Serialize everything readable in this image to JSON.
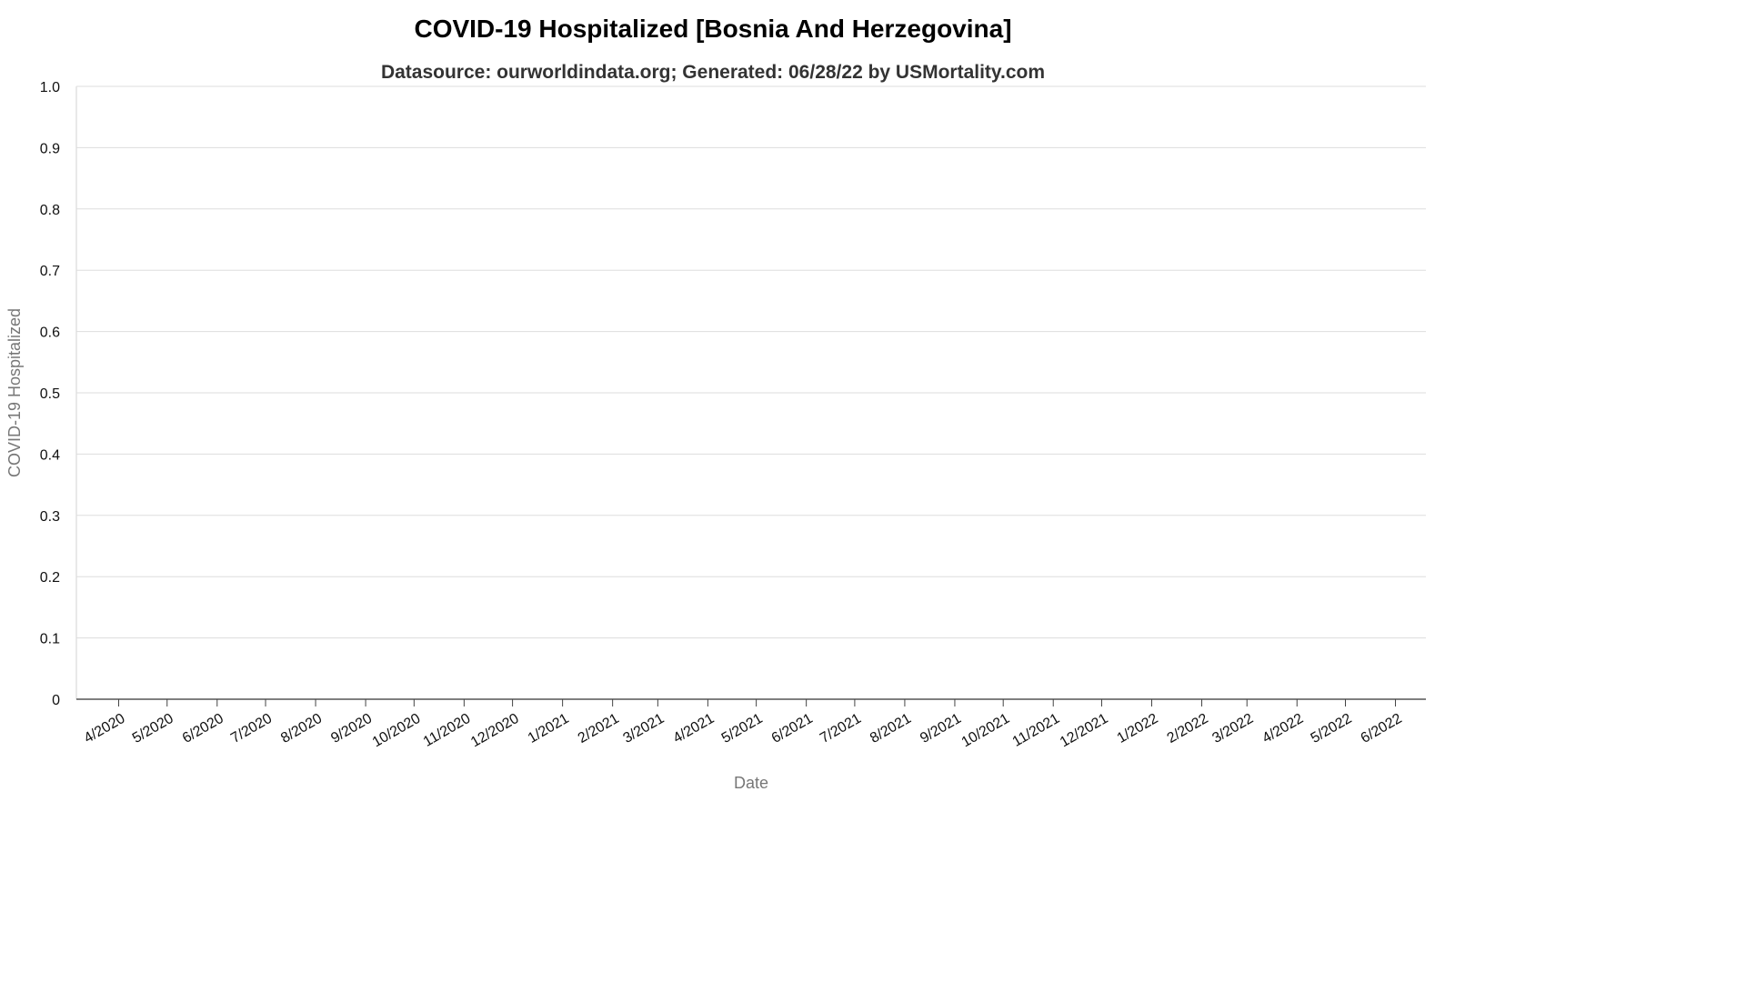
{
  "chart_data": {
    "type": "line",
    "title": "COVID-19 Hospitalized [Bosnia And Herzegovina]",
    "subtitle": "Datasource: ourworldindata.org; Generated: 06/28/22 by USMortality.com",
    "xlabel": "Date",
    "ylabel": "COVID-19 Hospitalized",
    "ylim": [
      0,
      1
    ],
    "y_ticks": [
      "0",
      "0.1",
      "0.2",
      "0.3",
      "0.4",
      "0.5",
      "0.6",
      "0.7",
      "0.8",
      "0.9",
      "1.0"
    ],
    "x_ticks": [
      "4/2020",
      "5/2020",
      "6/2020",
      "7/2020",
      "8/2020",
      "9/2020",
      "10/2020",
      "11/2020",
      "12/2020",
      "1/2021",
      "2/2021",
      "3/2021",
      "4/2021",
      "5/2021",
      "6/2021",
      "7/2021",
      "8/2021",
      "9/2021",
      "10/2021",
      "11/2021",
      "12/2021",
      "1/2022",
      "2/2022",
      "3/2022",
      "4/2022",
      "5/2022",
      "6/2022"
    ],
    "grid": true,
    "series": []
  }
}
